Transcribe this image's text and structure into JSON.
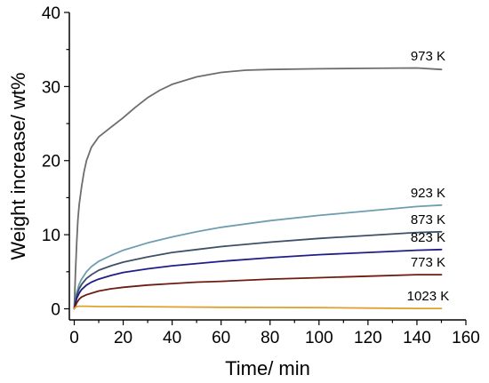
{
  "chart_data": {
    "type": "line",
    "title": "",
    "xlabel": "Time/ min",
    "ylabel": "Weight increase/ wt%",
    "xlim": [
      -2,
      160
    ],
    "ylim": [
      -1.5,
      40
    ],
    "xticks": [
      0,
      20,
      40,
      60,
      80,
      100,
      120,
      140,
      160
    ],
    "yticks": [
      0,
      10,
      20,
      30,
      40
    ],
    "grid": false,
    "legend": "inline labels at line ends",
    "series": [
      {
        "name": "973 K",
        "color": "#6d6d6d",
        "x": [
          0,
          0.5,
          1,
          1.5,
          2,
          3,
          4,
          5,
          7,
          10,
          15,
          20,
          25,
          30,
          35,
          40,
          50,
          60,
          70,
          80,
          100,
          120,
          140,
          150
        ],
        "y": [
          0,
          5,
          9,
          12,
          14,
          16.5,
          18.5,
          20,
          21.8,
          23.2,
          24.5,
          25.8,
          27.2,
          28.5,
          29.5,
          30.3,
          31.3,
          31.9,
          32.2,
          32.3,
          32.4,
          32.45,
          32.5,
          32.3
        ]
      },
      {
        "name": "923 K",
        "color": "#6e9eb0",
        "x": [
          0,
          0.5,
          1,
          2,
          3,
          5,
          7,
          10,
          15,
          20,
          30,
          40,
          50,
          60,
          80,
          100,
          120,
          140,
          150
        ],
        "y": [
          0,
          1.2,
          2.2,
          3.3,
          4.0,
          5.0,
          5.7,
          6.4,
          7.2,
          7.9,
          8.9,
          9.7,
          10.4,
          11.0,
          11.9,
          12.6,
          13.2,
          13.8,
          14.0
        ]
      },
      {
        "name": "873 K",
        "color": "#3e5068",
        "x": [
          0,
          0.5,
          1,
          2,
          3,
          5,
          7,
          10,
          15,
          20,
          30,
          40,
          50,
          60,
          80,
          100,
          120,
          140,
          150
        ],
        "y": [
          0,
          1.0,
          1.8,
          2.7,
          3.3,
          4.1,
          4.6,
          5.2,
          5.8,
          6.3,
          7.0,
          7.6,
          8.0,
          8.4,
          9.0,
          9.5,
          9.9,
          10.3,
          10.4
        ]
      },
      {
        "name": "823 K",
        "color": "#1e1e88",
        "x": [
          0,
          0.5,
          1,
          2,
          3,
          5,
          7,
          10,
          15,
          20,
          30,
          40,
          50,
          60,
          80,
          100,
          120,
          140,
          150
        ],
        "y": [
          0,
          0.8,
          1.4,
          2.1,
          2.6,
          3.2,
          3.6,
          4.0,
          4.5,
          4.9,
          5.4,
          5.8,
          6.1,
          6.4,
          6.9,
          7.3,
          7.6,
          7.9,
          8.0
        ]
      },
      {
        "name": "773 K",
        "color": "#6e1c10",
        "x": [
          0,
          0.5,
          1,
          2,
          3,
          5,
          7,
          10,
          15,
          20,
          30,
          40,
          50,
          60,
          80,
          100,
          120,
          140,
          150
        ],
        "y": [
          0,
          0.4,
          0.8,
          1.3,
          1.6,
          1.9,
          2.1,
          2.4,
          2.7,
          2.9,
          3.2,
          3.4,
          3.6,
          3.7,
          4.0,
          4.2,
          4.4,
          4.6,
          4.6
        ]
      },
      {
        "name": "1023 K",
        "color": "#e0a030",
        "x": [
          0,
          0.5,
          1,
          2,
          5,
          10,
          20,
          40,
          60,
          80,
          100,
          120,
          140,
          150
        ],
        "y": [
          0,
          0.2,
          0.3,
          0.35,
          0.35,
          0.3,
          0.3,
          0.25,
          0.2,
          0.18,
          0.15,
          0.1,
          0.05,
          0.05
        ]
      }
    ]
  }
}
